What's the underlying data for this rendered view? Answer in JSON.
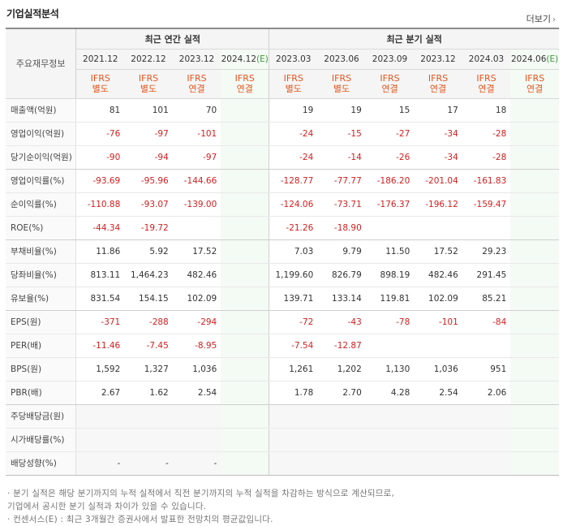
{
  "header": {
    "title": "기업실적분석",
    "more_label": "더보기",
    "more_chevron": "›"
  },
  "table": {
    "stub_header": "주요재무정보",
    "annual_group": "최근 연간 실적",
    "quarter_group": "최근 분기 실적",
    "periods": [
      {
        "year": "2021.12",
        "estimate_mark": "",
        "std": "IFRS",
        "type": "별도"
      },
      {
        "year": "2022.12",
        "estimate_mark": "",
        "std": "IFRS",
        "type": "별도"
      },
      {
        "year": "2023.12",
        "estimate_mark": "",
        "std": "IFRS",
        "type": "연결"
      },
      {
        "year": "2024.12",
        "estimate_mark": "(E)",
        "std": "IFRS",
        "type": "연결"
      },
      {
        "year": "2023.03",
        "estimate_mark": "",
        "std": "IFRS",
        "type": "별도"
      },
      {
        "year": "2023.06",
        "estimate_mark": "",
        "std": "IFRS",
        "type": "별도"
      },
      {
        "year": "2023.09",
        "estimate_mark": "",
        "std": "IFRS",
        "type": "연결"
      },
      {
        "year": "2023.12",
        "estimate_mark": "",
        "std": "IFRS",
        "type": "연결"
      },
      {
        "year": "2024.03",
        "estimate_mark": "",
        "std": "IFRS",
        "type": "연결"
      },
      {
        "year": "2024.06",
        "estimate_mark": "(E)",
        "std": "IFRS",
        "type": "연결"
      }
    ],
    "rows": [
      {
        "label": "매출액(억원)",
        "values": [
          "81",
          "101",
          "70",
          "",
          "19",
          "19",
          "15",
          "17",
          "18",
          ""
        ]
      },
      {
        "label": "영업이익(억원)",
        "values": [
          "-76",
          "-97",
          "-101",
          "",
          "-24",
          "-15",
          "-27",
          "-34",
          "-28",
          ""
        ]
      },
      {
        "label": "당기순이익(억원)",
        "values": [
          "-90",
          "-94",
          "-97",
          "",
          "-24",
          "-14",
          "-26",
          "-34",
          "-28",
          ""
        ]
      },
      {
        "label": "영업이익률(%)",
        "values": [
          "-93.69",
          "-95.96",
          "-144.66",
          "",
          "-128.77",
          "-77.77",
          "-186.20",
          "-201.04",
          "-161.83",
          ""
        ]
      },
      {
        "label": "순이익률(%)",
        "values": [
          "-110.88",
          "-93.07",
          "-139.00",
          "",
          "-124.06",
          "-73.71",
          "-176.37",
          "-196.12",
          "-159.47",
          ""
        ]
      },
      {
        "label": "ROE(%)",
        "values": [
          "-44.34",
          "-19.72",
          "",
          "",
          "-21.26",
          "-18.90",
          "",
          "",
          "",
          ""
        ]
      },
      {
        "label": "부채비율(%)",
        "values": [
          "11.86",
          "5.92",
          "17.52",
          "",
          "7.03",
          "9.79",
          "11.50",
          "17.52",
          "29.23",
          ""
        ]
      },
      {
        "label": "당좌비율(%)",
        "values": [
          "813.11",
          "1,464.23",
          "482.46",
          "",
          "1,199.60",
          "826.79",
          "898.19",
          "482.46",
          "291.45",
          ""
        ]
      },
      {
        "label": "유보율(%)",
        "values": [
          "831.54",
          "154.15",
          "102.09",
          "",
          "139.71",
          "133.14",
          "119.81",
          "102.09",
          "85.21",
          ""
        ]
      },
      {
        "label": "EPS(원)",
        "values": [
          "-371",
          "-288",
          "-294",
          "",
          "-72",
          "-43",
          "-78",
          "-101",
          "-84",
          ""
        ]
      },
      {
        "label": "PER(배)",
        "values": [
          "-11.46",
          "-7.45",
          "-8.95",
          "",
          "-7.54",
          "-12.87",
          "",
          "",
          "",
          ""
        ]
      },
      {
        "label": "BPS(원)",
        "values": [
          "1,592",
          "1,327",
          "1,036",
          "",
          "1,261",
          "1,202",
          "1,130",
          "1,036",
          "951",
          ""
        ]
      },
      {
        "label": "PBR(배)",
        "values": [
          "2.67",
          "1.62",
          "2.54",
          "",
          "1.78",
          "2.70",
          "4.28",
          "2.54",
          "2.06",
          ""
        ]
      },
      {
        "label": "주당배당금(원)",
        "values": [
          "",
          "",
          "",
          "",
          "",
          "",
          "",
          "",
          "",
          ""
        ]
      },
      {
        "label": "시가배당률(%)",
        "values": [
          "",
          "",
          "",
          "",
          "",
          "",
          "",
          "",
          "",
          ""
        ]
      },
      {
        "label": "배당성향(%)",
        "values": [
          "-",
          "-",
          "-",
          "",
          "",
          "",
          "",
          "",
          "",
          ""
        ]
      }
    ]
  },
  "notes": [
    "· 분기 실적은 해당 분기까지의 누적 실적에서 직전 분기까지의 누적 실적을 차감하는 방식으로 계산되므로,",
    "  기업에서 공시한 분기 실적과 차이가 있을 수 있습니다.",
    "· 컨센서스(E) : 최근 3개월간 증권사에서 발표한 전망치의 평균값입니다."
  ],
  "colors": {
    "negative": "#d21e1e",
    "ifrs_label": "#e4561e",
    "estimate_mark": "#3c9a3c",
    "estimate_bg": "#f4faf4"
  }
}
